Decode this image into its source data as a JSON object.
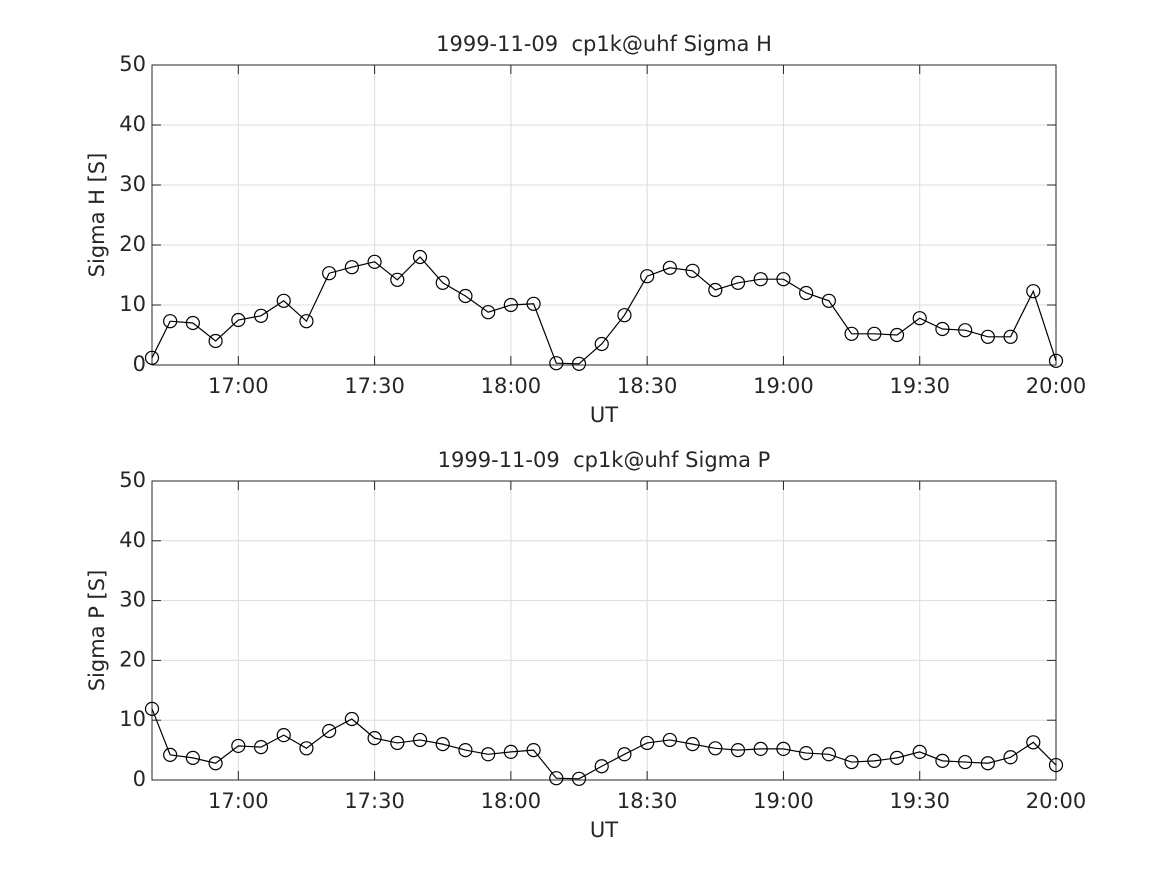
{
  "chart_data": [
    {
      "type": "line",
      "title": "1999-11-09  cp1k@uhf Sigma H",
      "xlabel": "UT",
      "ylabel": "Sigma H [S]",
      "x": [
        1001,
        1005,
        1010,
        1015,
        1020,
        1025,
        1030,
        1035,
        1040,
        1045,
        1050,
        1055,
        1060,
        1065,
        1070,
        1075,
        1080,
        1085,
        1090,
        1095,
        1100,
        1105,
        1110,
        1115,
        1120,
        1125,
        1130,
        1135,
        1140,
        1145,
        1150,
        1155,
        1160,
        1165,
        1170,
        1175,
        1180,
        1185,
        1190,
        1195,
        1200
      ],
      "series": [
        {
          "name": "Sigma H",
          "color": "#000000",
          "values": [
            1.2,
            7.3,
            7.0,
            4.0,
            7.5,
            8.2,
            10.7,
            7.3,
            15.3,
            16.3,
            17.2,
            14.2,
            18.0,
            13.7,
            11.5,
            8.8,
            10.0,
            10.2,
            0.3,
            0.2,
            3.5,
            8.3,
            14.8,
            16.2,
            15.7,
            12.5,
            13.7,
            14.3,
            14.3,
            12.0,
            10.7,
            5.2,
            5.2,
            5.0,
            7.8,
            6.0,
            5.8,
            4.7,
            4.7,
            12.3,
            0.7
          ]
        }
      ],
      "xlim": [
        1001,
        1200
      ],
      "xticks": [
        {
          "value": 1020,
          "label": "17:00"
        },
        {
          "value": 1050,
          "label": "17:30"
        },
        {
          "value": 1080,
          "label": "18:00"
        },
        {
          "value": 1110,
          "label": "18:30"
        },
        {
          "value": 1140,
          "label": "19:00"
        },
        {
          "value": 1170,
          "label": "19:30"
        },
        {
          "value": 1200,
          "label": "20:00"
        }
      ],
      "ylim": [
        0,
        50
      ],
      "yticks": [
        0,
        10,
        20,
        30,
        40,
        50
      ],
      "grid": true,
      "marker": "circle"
    },
    {
      "type": "line",
      "title": "1999-11-09  cp1k@uhf Sigma P",
      "xlabel": "UT",
      "ylabel": "Sigma P [S]",
      "x": [
        1001,
        1005,
        1010,
        1015,
        1020,
        1025,
        1030,
        1035,
        1040,
        1045,
        1050,
        1055,
        1060,
        1065,
        1070,
        1075,
        1080,
        1085,
        1090,
        1095,
        1100,
        1105,
        1110,
        1115,
        1120,
        1125,
        1130,
        1135,
        1140,
        1145,
        1150,
        1155,
        1160,
        1165,
        1170,
        1175,
        1180,
        1185,
        1190,
        1195,
        1200
      ],
      "series": [
        {
          "name": "Sigma P",
          "color": "#000000",
          "values": [
            11.9,
            4.2,
            3.7,
            2.8,
            5.7,
            5.5,
            7.5,
            5.3,
            8.2,
            10.2,
            7.0,
            6.2,
            6.7,
            6.0,
            5.0,
            4.3,
            4.7,
            5.0,
            0.3,
            0.2,
            2.3,
            4.3,
            6.2,
            6.7,
            6.0,
            5.3,
            5.0,
            5.2,
            5.2,
            4.5,
            4.3,
            3.0,
            3.2,
            3.7,
            4.7,
            3.2,
            3.0,
            2.8,
            3.8,
            6.3,
            2.5
          ]
        }
      ],
      "xlim": [
        1001,
        1200
      ],
      "xticks": [
        {
          "value": 1020,
          "label": "17:00"
        },
        {
          "value": 1050,
          "label": "17:30"
        },
        {
          "value": 1080,
          "label": "18:00"
        },
        {
          "value": 1110,
          "label": "18:30"
        },
        {
          "value": 1140,
          "label": "19:00"
        },
        {
          "value": 1170,
          "label": "19:30"
        },
        {
          "value": 1200,
          "label": "20:00"
        }
      ],
      "ylim": [
        0,
        50
      ],
      "yticks": [
        0,
        10,
        20,
        30,
        40,
        50
      ],
      "grid": true,
      "marker": "circle"
    }
  ]
}
